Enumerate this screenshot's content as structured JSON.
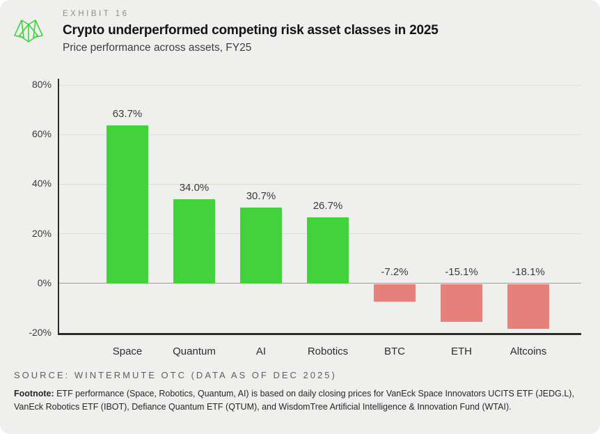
{
  "header": {
    "exhibit": "EXHIBIT 16"
  },
  "chart_data": {
    "type": "bar",
    "title": "Crypto underperformed competing risk asset classes in 2025",
    "subtitle": "Price performance across assets, FY25",
    "categories": [
      "Space",
      "Quantum",
      "AI",
      "Robotics",
      "BTC",
      "ETH",
      "Altcoins"
    ],
    "values": [
      63.7,
      34.0,
      30.7,
      26.7,
      -7.2,
      -15.1,
      -18.1
    ],
    "value_labels": [
      "63.7%",
      "34.0%",
      "30.7%",
      "26.7%",
      "-7.2%",
      "-15.1%",
      "-18.1%"
    ],
    "xlabel": "",
    "ylabel": "",
    "ylim": [
      -20,
      80
    ],
    "yticks": [
      80,
      60,
      40,
      20,
      0,
      -20
    ],
    "ytick_labels": [
      "80%",
      "60%",
      "40%",
      "20%",
      "0%",
      "-20%"
    ],
    "grid": true,
    "legend": "none",
    "positive_color": "#41d23c",
    "negative_color": "#e5807b"
  },
  "footer": {
    "source": "SOURCE: WINTERMUTE OTC (DATA AS OF DEC 2025)",
    "footnote_label": "Footnote:",
    "footnote_text": " ETF performance (Space, Robotics, Quantum, AI) is based on daily closing prices for VanEck Space Innovators UCITS ETF (JEDG.L), VanEck Robotics ETF (IBOT), Defiance Quantum ETF (QTUM), and WisdomTree Artificial Intelligence & Innovation Fund (WTAI)."
  },
  "icons": {
    "logo": "wintermute-logo"
  }
}
